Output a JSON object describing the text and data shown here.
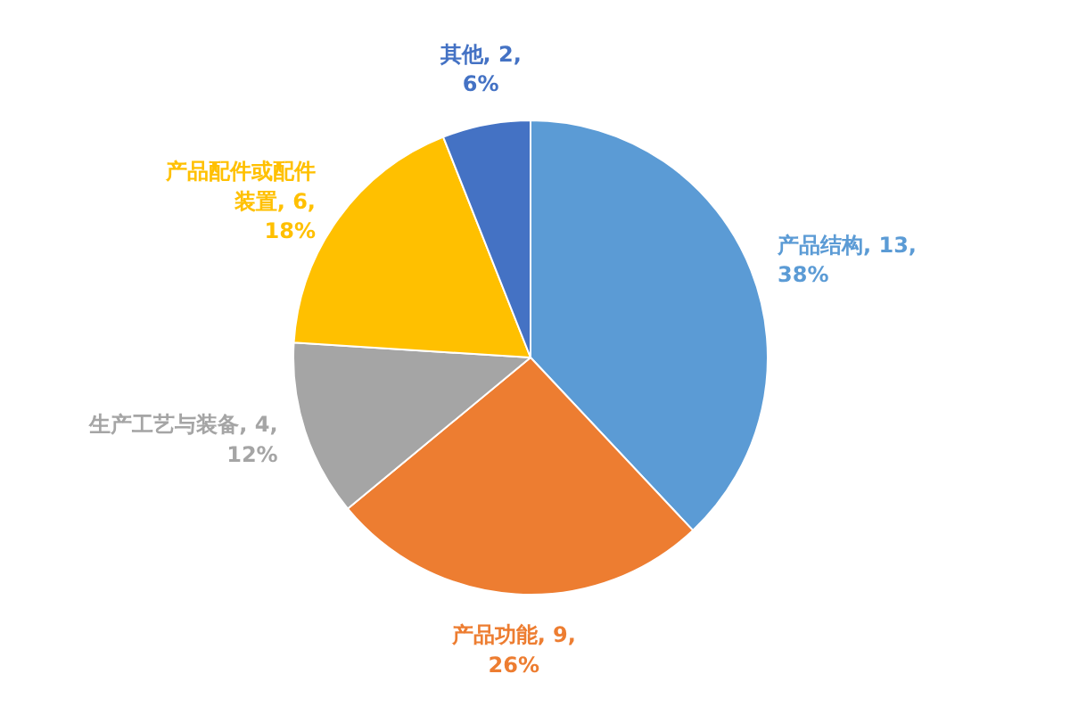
{
  "chart_data": {
    "type": "pie",
    "categories": [
      "产品结构",
      "产品功能",
      "生产工艺与装备",
      "产品配件或配件装置",
      "其他"
    ],
    "values": [
      38,
      26,
      12,
      18,
      6
    ],
    "colors": [
      "#5b9bd5",
      "#ed7d31",
      "#a5a5a5",
      "#ffc000",
      "#4472c4"
    ],
    "value_labels": [
      "13, 38%",
      "9, 26%",
      "4, 12%",
      "6, 18%",
      "2, 6%"
    ]
  }
}
